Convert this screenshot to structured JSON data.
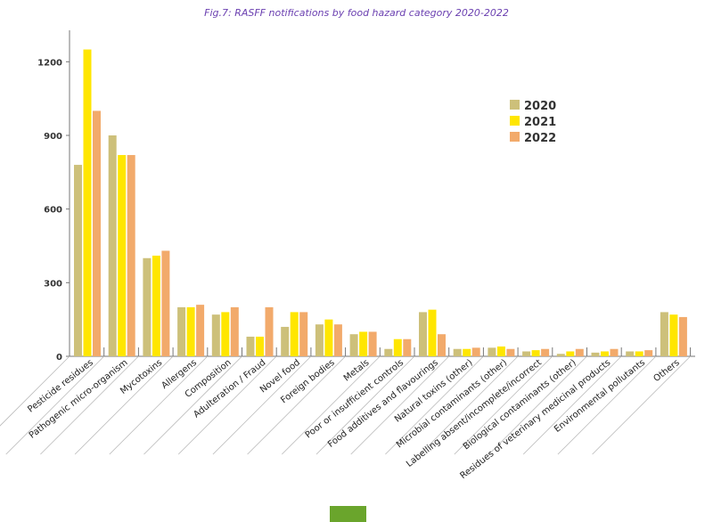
{
  "chart_data": {
    "type": "bar",
    "title": "Fig.7: RASFF notifications by food hazard category 2020-2022",
    "xlabel": "",
    "ylabel": "",
    "ylim": [
      0,
      1350
    ],
    "yticks": [
      0,
      300,
      600,
      900,
      1200
    ],
    "legend_position": "top-right",
    "categories": [
      "Pesticide residues",
      "Pathogenic micro-organism",
      "Mycotoxins",
      "Allergens",
      "Composition",
      "Adulteration / Fraud",
      "Novel food",
      "Foreign bodies",
      "Metals",
      "Poor or insufficient controls",
      "Food additives and flavourings",
      "Natural toxins (other)",
      "Microbial contaminants (other)",
      "Labelling absent/incomplete/incorrect",
      "Biological contaminants (other)",
      "Residues of veterinary medicinal products",
      "Environmental pollutants",
      "Others"
    ],
    "series": [
      {
        "name": "2020",
        "color": "#cdc07a",
        "values": [
          780,
          900,
          400,
          200,
          170,
          80,
          120,
          130,
          90,
          30,
          180,
          30,
          35,
          20,
          10,
          15,
          20,
          180
        ]
      },
      {
        "name": "2021",
        "color": "#ffe600",
        "values": [
          1250,
          820,
          410,
          200,
          180,
          80,
          180,
          150,
          100,
          70,
          190,
          30,
          40,
          25,
          20,
          20,
          20,
          170
        ]
      },
      {
        "name": "2022",
        "color": "#f2aa6b",
        "values": [
          1000,
          820,
          430,
          210,
          200,
          200,
          180,
          130,
          100,
          70,
          90,
          35,
          30,
          30,
          30,
          30,
          25,
          160
        ]
      }
    ]
  }
}
